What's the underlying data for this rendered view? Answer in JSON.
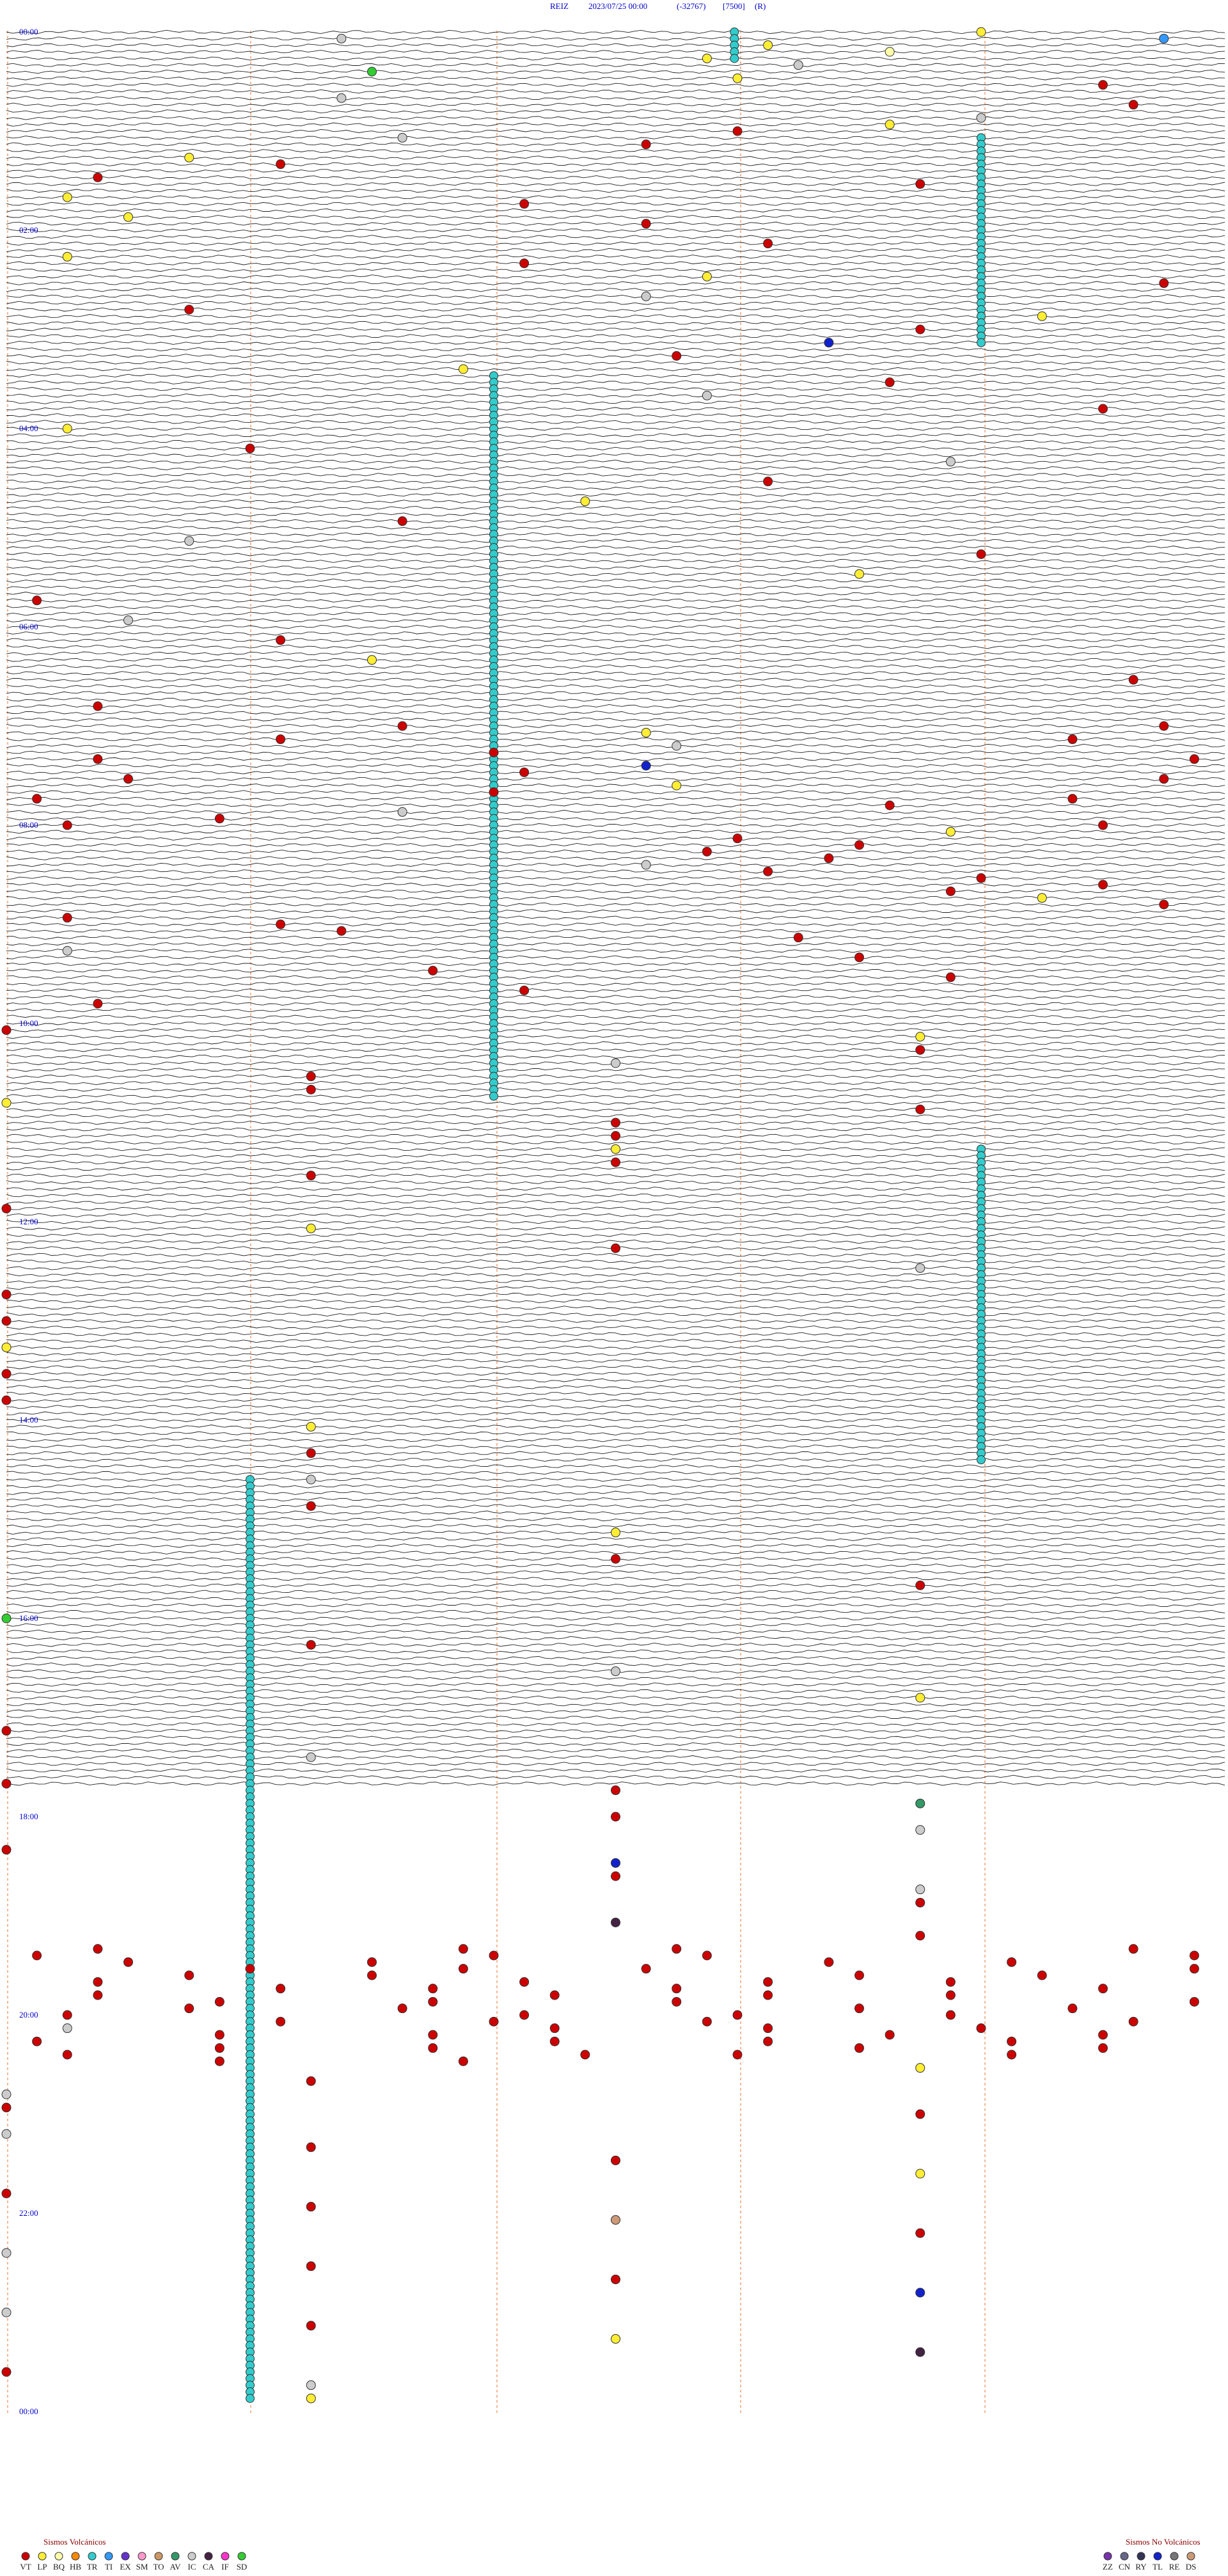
{
  "header": {
    "station": "REIZ",
    "datetime": "2023/07/25 00:00",
    "code": "(-32767)",
    "scale": "[7500]",
    "flag": "(R)"
  },
  "hour_labels": [
    "00:00",
    "02:00",
    "04:00",
    "06:00",
    "08:00",
    "10:00",
    "12:00",
    "14:00",
    "16:00",
    "18:00",
    "20:00",
    "22:00",
    "00:00"
  ],
  "tremors": [
    {
      "type": "TR",
      "start": 2.39,
      "end": 20
    },
    {
      "type": "TR",
      "start": 67.2,
      "end": 192
    },
    {
      "type": "TR",
      "start": 209.6,
      "end": 648
    },
    {
      "type": "TR",
      "start": 679.2,
      "end": 870
    },
    {
      "type": "TR",
      "start": 876.8,
      "end": 1434
    }
  ],
  "events": [
    [
      3.2,
      "LP"
    ],
    [
      5.1,
      "IC"
    ],
    [
      7.8,
      "TI"
    ],
    [
      10.5,
      "LP"
    ],
    [
      14.9,
      "BQ"
    ],
    [
      18.3,
      "LP"
    ],
    [
      22.6,
      "IC"
    ],
    [
      25.2,
      "SD"
    ],
    [
      30.4,
      "LP"
    ],
    [
      35.6,
      "VT"
    ],
    [
      41.1,
      "IC"
    ],
    [
      47.7,
      "VT"
    ],
    [
      55.2,
      "IC"
    ],
    [
      58.9,
      "LP"
    ],
    [
      62.4,
      "VT"
    ],
    [
      65.3,
      "IC"
    ],
    [
      70.1,
      "VT"
    ],
    [
      76.6,
      "LP"
    ],
    [
      80.9,
      "VT"
    ],
    [
      88.3,
      "VT"
    ],
    [
      95.0,
      "VT"
    ],
    [
      100.2,
      "LP"
    ],
    [
      105.7,
      "VT"
    ],
    [
      112.4,
      "LP"
    ],
    [
      118.1,
      "VT"
    ],
    [
      130.5,
      "VT"
    ],
    [
      136.2,
      "LP"
    ],
    [
      141.7,
      "VT"
    ],
    [
      150.3,
      "LP"
    ],
    [
      155.8,
      "VT"
    ],
    [
      162.1,
      "IC"
    ],
    [
      168.6,
      "VT"
    ],
    [
      175.4,
      "LP"
    ],
    [
      183.0,
      "VT"
    ],
    [
      190.7,
      "TL"
    ],
    [
      198.2,
      "VT"
    ],
    [
      205.5,
      "LP"
    ],
    [
      214.9,
      "VT"
    ],
    [
      222.3,
      "IC"
    ],
    [
      231.6,
      "VT"
    ],
    [
      240.2,
      "LP"
    ],
    [
      252.8,
      "VT"
    ],
    [
      263.1,
      "IC"
    ],
    [
      274.5,
      "VT"
    ],
    [
      285.9,
      "LP"
    ],
    [
      297.3,
      "VT"
    ],
    [
      308.6,
      "IC"
    ],
    [
      319.2,
      "VT"
    ],
    [
      330.8,
      "LP"
    ],
    [
      344.1,
      "VT"
    ],
    [
      356.4,
      "IC"
    ],
    [
      368.9,
      "VT"
    ],
    [
      381.2,
      "LP"
    ],
    [
      395.7,
      "VT"
    ],
    [
      408.3,
      "VT"
    ],
    [
      421.3,
      "VT"
    ],
    [
      423.8,
      "VT"
    ],
    [
      426.1,
      "LP"
    ],
    [
      428.9,
      "VT"
    ],
    [
      431.5,
      "VT"
    ],
    [
      434.2,
      "IC"
    ],
    [
      437.6,
      "VT"
    ],
    [
      440.3,
      "VT"
    ],
    [
      443.9,
      "VT"
    ],
    [
      446.1,
      "TL"
    ],
    [
      449.7,
      "VT"
    ],
    [
      452.4,
      "VT"
    ],
    [
      455.8,
      "VT"
    ],
    [
      458.2,
      "LP"
    ],
    [
      461.6,
      "VT"
    ],
    [
      464.1,
      "VT"
    ],
    [
      467.5,
      "VT"
    ],
    [
      470.9,
      "VT"
    ],
    [
      473.3,
      "IC"
    ],
    [
      476.7,
      "VT"
    ],
    [
      480.2,
      "VT"
    ],
    [
      483.6,
      "VT"
    ],
    [
      487.1,
      "LP"
    ],
    [
      490.4,
      "VT"
    ],
    [
      494.8,
      "VT"
    ],
    [
      498.3,
      "VT"
    ],
    [
      502.7,
      "VT"
    ],
    [
      506.1,
      "IC"
    ],
    [
      510.5,
      "VT"
    ],
    [
      515.2,
      "VT"
    ],
    [
      519.6,
      "VT"
    ],
    [
      523.1,
      "VT"
    ],
    [
      527.4,
      "LP"
    ],
    [
      531.8,
      "VT"
    ],
    [
      536.2,
      "VT"
    ],
    [
      540.9,
      "VT"
    ],
    [
      545.1,
      "VT"
    ],
    [
      550.6,
      "VT"
    ],
    [
      556.2,
      "IC"
    ],
    [
      562.8,
      "VT"
    ],
    [
      569.4,
      "VT"
    ],
    [
      575.1,
      "VT"
    ],
    [
      581.7,
      "VT"
    ],
    [
      588.3,
      "VT"
    ],
    [
      604,
      "VT"
    ],
    [
      611,
      "LP"
    ],
    [
      619,
      "VT"
    ],
    [
      626,
      "IC"
    ],
    [
      633,
      "VT"
    ],
    [
      641,
      "VT"
    ],
    [
      648,
      "LP"
    ],
    [
      655,
      "VT"
    ],
    [
      662,
      "VT"
    ],
    [
      670,
      "VT"
    ],
    [
      678,
      "LP"
    ],
    [
      686,
      "VT"
    ],
    [
      693,
      "VT"
    ],
    [
      712,
      "VT"
    ],
    [
      725,
      "LP"
    ],
    [
      738,
      "VT"
    ],
    [
      751,
      "IC"
    ],
    [
      764,
      "VT"
    ],
    [
      780,
      "VT"
    ],
    [
      796,
      "LP"
    ],
    [
      812,
      "VT"
    ],
    [
      828,
      "VT"
    ],
    [
      845,
      "LP"
    ],
    [
      861,
      "VT"
    ],
    [
      877,
      "IC"
    ],
    [
      893,
      "VT"
    ],
    [
      910,
      "LP"
    ],
    [
      926,
      "VT"
    ],
    [
      943,
      "VT"
    ],
    [
      960,
      "SD"
    ],
    [
      977,
      "VT"
    ],
    [
      994,
      "IC"
    ],
    [
      1011,
      "LP"
    ],
    [
      1028,
      "VT"
    ],
    [
      1045,
      "IC"
    ],
    [
      1060,
      "VT"
    ],
    [
      1066,
      "VT"
    ],
    [
      1075,
      "AV"
    ],
    [
      1082,
      "VT"
    ],
    [
      1091,
      "IC"
    ],
    [
      1100,
      "VT"
    ],
    [
      1110,
      "TL"
    ],
    [
      1118,
      "VT"
    ],
    [
      1127,
      "IC"
    ],
    [
      1135,
      "VT"
    ],
    [
      1146,
      "CA"
    ],
    [
      1155,
      "VT"
    ],
    [
      1160.3,
      "VT"
    ],
    [
      1161.5,
      "VT"
    ],
    [
      1162.2,
      "VT"
    ],
    [
      1163.7,
      "VT"
    ],
    [
      1164.1,
      "VT"
    ],
    [
      1165.6,
      "VT"
    ],
    [
      1166.3,
      "VT"
    ],
    [
      1167.9,
      "VT"
    ],
    [
      1168.4,
      "VT"
    ],
    [
      1169.2,
      "VT"
    ],
    [
      1170.7,
      "VT"
    ],
    [
      1171.3,
      "VT"
    ],
    [
      1172.8,
      "VT"
    ],
    [
      1173.5,
      "VT"
    ],
    [
      1174.1,
      "VT"
    ],
    [
      1175.9,
      "VT"
    ],
    [
      1176.6,
      "VT"
    ],
    [
      1177.2,
      "VT"
    ],
    [
      1178.8,
      "VT"
    ],
    [
      1179.4,
      "VT"
    ],
    [
      1180.3,
      "VT"
    ],
    [
      1181.7,
      "VT"
    ],
    [
      1182.5,
      "VT"
    ],
    [
      1183.1,
      "VT"
    ],
    [
      1184.9,
      "VT"
    ],
    [
      1185.4,
      "VT"
    ],
    [
      1186.2,
      "VT"
    ],
    [
      1187.6,
      "VT"
    ],
    [
      1188.3,
      "VT"
    ],
    [
      1189.8,
      "VT"
    ],
    [
      1190.5,
      "VT"
    ],
    [
      1191.1,
      "VT"
    ],
    [
      1192.7,
      "VT"
    ],
    [
      1193.4,
      "VT"
    ],
    [
      1194.2,
      "VT"
    ],
    [
      1195.9,
      "VT"
    ],
    [
      1196.6,
      "VT"
    ],
    [
      1197.3,
      "VT"
    ],
    [
      1198.8,
      "VT"
    ],
    [
      1199.5,
      "VT"
    ],
    [
      1200.2,
      "VT"
    ],
    [
      1201.7,
      "VT"
    ],
    [
      1202.4,
      "VT"
    ],
    [
      1203.1,
      "VT"
    ],
    [
      1204.9,
      "VT"
    ],
    [
      1205.6,
      "VT"
    ],
    [
      1206.3,
      "VT"
    ],
    [
      1207.7,
      "VT"
    ],
    [
      1208.2,
      "IC"
    ],
    [
      1209.8,
      "VT"
    ],
    [
      1210.5,
      "VT"
    ],
    [
      1211.2,
      "VT"
    ],
    [
      1212.7,
      "VT"
    ],
    [
      1213.4,
      "VT"
    ],
    [
      1214.9,
      "VT"
    ],
    [
      1215.6,
      "VT"
    ],
    [
      1216.1,
      "VT"
    ],
    [
      1217.8,
      "VT"
    ],
    [
      1218.5,
      "VT"
    ],
    [
      1219.3,
      "VT"
    ],
    [
      1220.7,
      "VT"
    ],
    [
      1221.4,
      "VT"
    ],
    [
      1222.8,
      "VT"
    ],
    [
      1223.6,
      "VT"
    ],
    [
      1224.2,
      "VT"
    ],
    [
      1225.9,
      "VT"
    ],
    [
      1226.4,
      "VT"
    ],
    [
      1227.3,
      "VT"
    ],
    [
      1228.7,
      "VT"
    ],
    [
      1229.5,
      "VT"
    ],
    [
      1235,
      "LP"
    ],
    [
      1241,
      "VT"
    ],
    [
      1248,
      "IC"
    ],
    [
      1256,
      "VT"
    ],
    [
      1263,
      "VT"
    ],
    [
      1272,
      "IC"
    ],
    [
      1281,
      "VT"
    ],
    [
      1290,
      "VT"
    ],
    [
      1299,
      "LP"
    ],
    [
      1308,
      "VT"
    ],
    [
      1317,
      "VT"
    ],
    [
      1326,
      "DS"
    ],
    [
      1335,
      "VT"
    ],
    [
      1344,
      "IC"
    ],
    [
      1353,
      "VT"
    ],
    [
      1362,
      "VT"
    ],
    [
      1371,
      "TL"
    ],
    [
      1380,
      "IC"
    ],
    [
      1389,
      "VT"
    ],
    [
      1398,
      "LP"
    ],
    [
      1407,
      "CA"
    ],
    [
      1416,
      "VT"
    ],
    [
      1425,
      "IC"
    ],
    [
      1433,
      "LP"
    ]
  ],
  "legend": {
    "volcanic": {
      "title": "Sismos Volcánicos",
      "items": [
        {
          "code": "VT",
          "color": "#cc0000"
        },
        {
          "code": "LP",
          "color": "#ffee33"
        },
        {
          "code": "BQ",
          "color": "#ffffaa"
        },
        {
          "code": "HB",
          "color": "#ff8800"
        },
        {
          "code": "TR",
          "color": "#33cccc"
        },
        {
          "code": "TI",
          "color": "#3399ff"
        },
        {
          "code": "EX",
          "color": "#6633cc"
        },
        {
          "code": "SM",
          "color": "#ff99cc"
        },
        {
          "code": "TO",
          "color": "#cc9966"
        },
        {
          "code": "AV",
          "color": "#339966"
        },
        {
          "code": "IC",
          "color": "#cccccc"
        },
        {
          "code": "CA",
          "color": "#442244"
        },
        {
          "code": "IF",
          "color": "#ff33cc"
        },
        {
          "code": "SD",
          "color": "#33cc33"
        }
      ]
    },
    "non_volcanic": {
      "title": "Sismos No Volcánicos",
      "items": [
        {
          "code": "ZZ",
          "color": "#7733aa"
        },
        {
          "code": "CN",
          "color": "#666688"
        },
        {
          "code": "RY",
          "color": "#333355"
        },
        {
          "code": "TL",
          "color": "#1122cc"
        },
        {
          "code": "RE",
          "color": "#777777"
        },
        {
          "code": "DS",
          "color": "#cc9977"
        }
      ]
    }
  }
}
